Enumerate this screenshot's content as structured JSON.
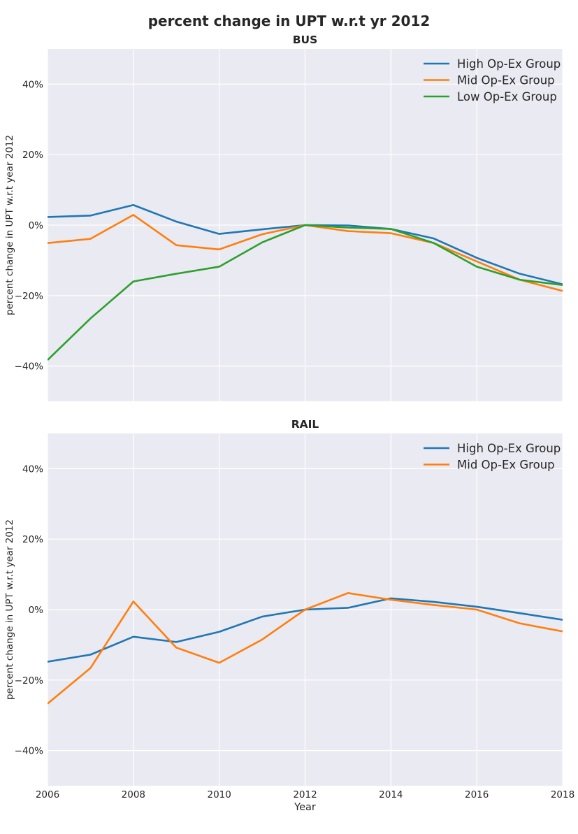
{
  "suptitle": "percent change in UPT w.r.t yr 2012",
  "colors": {
    "background": "#eaeaf2",
    "grid": "#ffffff",
    "text": "#262626",
    "High Op-Ex Group": "#1f77b4",
    "Mid Op-Ex Group": "#ff7f0e",
    "Low Op-Ex Group": "#2ca02c"
  },
  "chart_data": [
    {
      "type": "line",
      "title": "BUS",
      "xlabel": "",
      "ylabel": "percent change in UPT w.r.t year 2012",
      "xlim": [
        2006,
        2018
      ],
      "ylim": [
        -50,
        50
      ],
      "x_ticks": [
        2006,
        2008,
        2010,
        2012,
        2014,
        2016,
        2018
      ],
      "y_ticks": [
        -40,
        -20,
        0,
        20,
        40
      ],
      "y_tick_labels": [
        "−40%",
        "−20%",
        "0%",
        "20%",
        "40%"
      ],
      "show_x_tick_labels": false,
      "grid": true,
      "legend": "top-right",
      "x": [
        2006,
        2007,
        2008,
        2009,
        2010,
        2011,
        2012,
        2013,
        2014,
        2015,
        2016,
        2017,
        2018
      ],
      "series": [
        {
          "name": "High Op-Ex Group",
          "color": "#1f77b4",
          "values": [
            2.3,
            2.7,
            5.7,
            1.0,
            -2.5,
            -1.2,
            0.0,
            -0.1,
            -1.1,
            -3.8,
            -9.3,
            -13.8,
            -16.8
          ]
        },
        {
          "name": "Mid Op-Ex Group",
          "color": "#ff7f0e",
          "values": [
            -5.1,
            -3.9,
            2.9,
            -5.7,
            -6.9,
            -2.6,
            0.0,
            -1.7,
            -2.3,
            -5.1,
            -10.3,
            -15.5,
            -18.7
          ]
        },
        {
          "name": "Low Op-Ex Group",
          "color": "#2ca02c",
          "values": [
            -38.3,
            -26.5,
            -16.0,
            -13.8,
            -11.8,
            -4.9,
            0.0,
            -0.7,
            -1.1,
            -5.1,
            -11.8,
            -15.5,
            -17.0
          ]
        }
      ]
    },
    {
      "type": "line",
      "title": "RAIL",
      "xlabel": "Year",
      "ylabel": "percent change in UPT w.r.t year 2012",
      "xlim": [
        2006,
        2018
      ],
      "ylim": [
        -50,
        50
      ],
      "x_ticks": [
        2006,
        2008,
        2010,
        2012,
        2014,
        2016,
        2018
      ],
      "y_ticks": [
        -40,
        -20,
        0,
        20,
        40
      ],
      "y_tick_labels": [
        "−40%",
        "−20%",
        "0%",
        "20%",
        "40%"
      ],
      "show_x_tick_labels": true,
      "grid": true,
      "legend": "top-right",
      "x": [
        2006,
        2007,
        2008,
        2009,
        2010,
        2011,
        2012,
        2013,
        2014,
        2015,
        2016,
        2017,
        2018
      ],
      "series": [
        {
          "name": "High Op-Ex Group",
          "color": "#1f77b4",
          "values": [
            -14.8,
            -12.8,
            -7.7,
            -9.2,
            -6.3,
            -2.0,
            0.0,
            0.5,
            3.2,
            2.2,
            0.8,
            -1.0,
            -2.9
          ]
        },
        {
          "name": "Mid Op-Ex Group",
          "color": "#ff7f0e",
          "values": [
            -26.7,
            -16.6,
            2.3,
            -10.8,
            -15.1,
            -8.5,
            0.0,
            4.7,
            2.8,
            1.3,
            0.0,
            -3.9,
            -6.2
          ]
        }
      ]
    }
  ]
}
